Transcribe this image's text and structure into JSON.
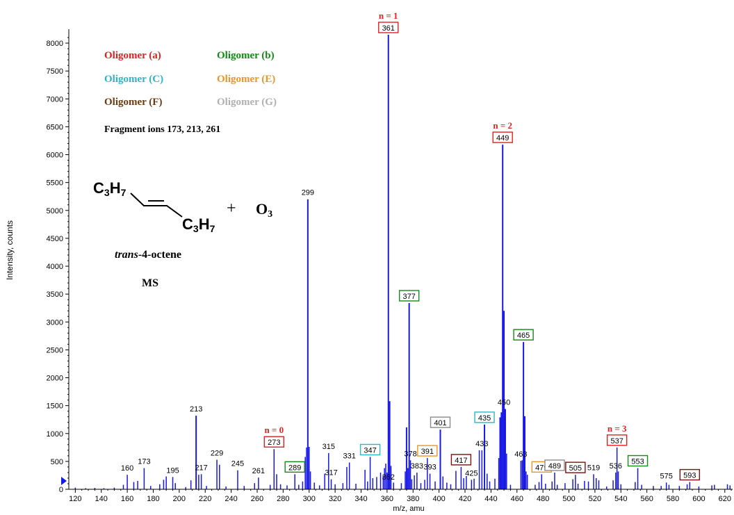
{
  "chart_data": {
    "type": "bar",
    "xlabel": "m/z, amu",
    "ylabel": "Intensity, counts",
    "xlim": [
      115,
      626
    ],
    "ylim": [
      0,
      8200
    ],
    "xticks": [
      120,
      140,
      160,
      180,
      200,
      220,
      240,
      260,
      280,
      300,
      320,
      340,
      360,
      380,
      400,
      420,
      440,
      460,
      480,
      500,
      520,
      540,
      560,
      580,
      600,
      620
    ],
    "yticks": [
      0,
      500,
      1000,
      1500,
      2000,
      2500,
      3000,
      3500,
      4000,
      4500,
      5000,
      5500,
      6000,
      6500,
      7000,
      7500,
      8000
    ],
    "grid": false,
    "peaks": [
      [
        120,
        30
      ],
      [
        128,
        20
      ],
      [
        135,
        25
      ],
      [
        142,
        20
      ],
      [
        150,
        30
      ],
      [
        157,
        80
      ],
      [
        160,
        260
      ],
      [
        165,
        130
      ],
      [
        168,
        150
      ],
      [
        173,
        380
      ],
      [
        178,
        60
      ],
      [
        185,
        90
      ],
      [
        188,
        170
      ],
      [
        190,
        230
      ],
      [
        195,
        220
      ],
      [
        197,
        110
      ],
      [
        205,
        40
      ],
      [
        209,
        160
      ],
      [
        213,
        1320
      ],
      [
        215,
        260
      ],
      [
        217,
        270
      ],
      [
        221,
        60
      ],
      [
        229,
        530
      ],
      [
        231,
        440
      ],
      [
        236,
        50
      ],
      [
        245,
        340
      ],
      [
        250,
        60
      ],
      [
        258,
        110
      ],
      [
        261,
        210
      ],
      [
        270,
        80
      ],
      [
        273,
        720
      ],
      [
        275,
        270
      ],
      [
        278,
        90
      ],
      [
        283,
        70
      ],
      [
        289,
        270
      ],
      [
        292,
        80
      ],
      [
        295,
        140
      ],
      [
        297,
        580
      ],
      [
        298,
        750
      ],
      [
        299,
        5200
      ],
      [
        300,
        760
      ],
      [
        301,
        320
      ],
      [
        304,
        120
      ],
      [
        308,
        70
      ],
      [
        312,
        280
      ],
      [
        315,
        650
      ],
      [
        317,
        180
      ],
      [
        320,
        90
      ],
      [
        326,
        110
      ],
      [
        329,
        400
      ],
      [
        331,
        480
      ],
      [
        336,
        100
      ],
      [
        343,
        350
      ],
      [
        345,
        140
      ],
      [
        347,
        580
      ],
      [
        349,
        200
      ],
      [
        352,
        220
      ],
      [
        355,
        300
      ],
      [
        357,
        240
      ],
      [
        358,
        380
      ],
      [
        359,
        460
      ],
      [
        360,
        300
      ],
      [
        361,
        8150
      ],
      [
        362,
        1580
      ],
      [
        363,
        420
      ],
      [
        365,
        120
      ],
      [
        371,
        110
      ],
      [
        374,
        320
      ],
      [
        375,
        1110
      ],
      [
        376,
        380
      ],
      [
        377,
        3340
      ],
      [
        378,
        520
      ],
      [
        379,
        180
      ],
      [
        381,
        250
      ],
      [
        383,
        300
      ],
      [
        386,
        110
      ],
      [
        389,
        170
      ],
      [
        391,
        560
      ],
      [
        393,
        280
      ],
      [
        397,
        140
      ],
      [
        401,
        1070
      ],
      [
        403,
        230
      ],
      [
        406,
        120
      ],
      [
        409,
        90
      ],
      [
        413,
        330
      ],
      [
        417,
        400
      ],
      [
        419,
        200
      ],
      [
        421,
        240
      ],
      [
        425,
        170
      ],
      [
        427,
        190
      ],
      [
        431,
        700
      ],
      [
        433,
        700
      ],
      [
        435,
        1160
      ],
      [
        437,
        280
      ],
      [
        439,
        140
      ],
      [
        443,
        190
      ],
      [
        446,
        560
      ],
      [
        447,
        1290
      ],
      [
        448,
        1380
      ],
      [
        449,
        6180
      ],
      [
        450,
        3200
      ],
      [
        451,
        1440
      ],
      [
        452,
        640
      ],
      [
        455,
        80
      ],
      [
        463,
        510
      ],
      [
        464,
        520
      ],
      [
        465,
        2640
      ],
      [
        466,
        1310
      ],
      [
        467,
        320
      ],
      [
        468,
        260
      ],
      [
        474,
        80
      ],
      [
        477,
        130
      ],
      [
        479,
        270
      ],
      [
        482,
        100
      ],
      [
        487,
        140
      ],
      [
        489,
        300
      ],
      [
        491,
        80
      ],
      [
        497,
        110
      ],
      [
        503,
        180
      ],
      [
        505,
        260
      ],
      [
        507,
        100
      ],
      [
        512,
        150
      ],
      [
        515,
        140
      ],
      [
        519,
        270
      ],
      [
        521,
        200
      ],
      [
        523,
        160
      ],
      [
        529,
        50
      ],
      [
        534,
        160
      ],
      [
        536,
        300
      ],
      [
        537,
        750
      ],
      [
        538,
        320
      ],
      [
        540,
        90
      ],
      [
        551,
        130
      ],
      [
        553,
        380
      ],
      [
        556,
        80
      ],
      [
        565,
        60
      ],
      [
        571,
        60
      ],
      [
        575,
        120
      ],
      [
        577,
        80
      ],
      [
        585,
        60
      ],
      [
        591,
        90
      ],
      [
        593,
        130
      ],
      [
        600,
        50
      ],
      [
        610,
        70
      ],
      [
        612,
        80
      ],
      [
        622,
        90
      ],
      [
        624,
        70
      ]
    ],
    "labels": [
      {
        "text": "160",
        "x": 160,
        "y": 260
      },
      {
        "text": "173",
        "x": 173,
        "y": 380
      },
      {
        "text": "195",
        "x": 195,
        "y": 220
      },
      {
        "text": "213",
        "x": 213,
        "y": 1320
      },
      {
        "text": "217",
        "x": 217,
        "y": 270
      },
      {
        "text": "229",
        "x": 229,
        "y": 530
      },
      {
        "text": "245",
        "x": 245,
        "y": 340
      },
      {
        "text": "261",
        "x": 261,
        "y": 210
      },
      {
        "text": "273",
        "x": 273,
        "y": 720,
        "box": "#e02020"
      },
      {
        "text": "289",
        "x": 289,
        "y": 270,
        "box": "#138a13"
      },
      {
        "text": "299",
        "x": 299,
        "y": 5200
      },
      {
        "text": "315",
        "x": 315,
        "y": 650
      },
      {
        "text": "317",
        "x": 317,
        "y": 180
      },
      {
        "text": "331",
        "x": 331,
        "y": 480
      },
      {
        "text": "347",
        "x": 347,
        "y": 580,
        "box": "#2cb5c6"
      },
      {
        "text": "362",
        "x": 361,
        "y": 100
      },
      {
        "text": "361",
        "x": 361,
        "y": 8150,
        "box": "#e02020"
      },
      {
        "text": "377",
        "x": 377,
        "y": 3340,
        "box": "#138a13"
      },
      {
        "text": "378",
        "x": 378,
        "y": 520
      },
      {
        "text": "383",
        "x": 383,
        "y": 300
      },
      {
        "text": "391",
        "x": 391,
        "y": 560,
        "box": "#e8962a"
      },
      {
        "text": "393",
        "x": 393,
        "y": 280
      },
      {
        "text": "401",
        "x": 401,
        "y": 1070,
        "box": "#8c8c8c"
      },
      {
        "text": "417",
        "x": 417,
        "y": 400,
        "box": "#7a1010"
      },
      {
        "text": "425",
        "x": 425,
        "y": 170
      },
      {
        "text": "433",
        "x": 433,
        "y": 700
      },
      {
        "text": "435",
        "x": 435,
        "y": 1160,
        "box": "#2cb5c6"
      },
      {
        "text": "449",
        "x": 449,
        "y": 6180,
        "box": "#e02020"
      },
      {
        "text": "450",
        "x": 450,
        "y": 1440
      },
      {
        "text": "463",
        "x": 463,
        "y": 510
      },
      {
        "text": "465",
        "x": 465,
        "y": 2640,
        "box": "#138a13"
      },
      {
        "text": "479",
        "x": 479,
        "y": 270,
        "box": "#e8962a"
      },
      {
        "text": "489",
        "x": 489,
        "y": 300,
        "box": "#8c8c8c"
      },
      {
        "text": "505",
        "x": 505,
        "y": 260,
        "box": "#7a1010"
      },
      {
        "text": "519",
        "x": 519,
        "y": 270
      },
      {
        "text": "536",
        "x": 536,
        "y": 300
      },
      {
        "text": "537",
        "x": 537,
        "y": 750,
        "box": "#e02020"
      },
      {
        "text": "553",
        "x": 553,
        "y": 380,
        "box": "#138a13"
      },
      {
        "text": "575",
        "x": 575,
        "y": 120
      },
      {
        "text": "593",
        "x": 593,
        "y": 130,
        "box": "#7a1010"
      }
    ],
    "n_labels": [
      {
        "text": "n = 0",
        "x": 273
      },
      {
        "text": "n = 1",
        "x": 361
      },
      {
        "text": "n = 2",
        "x": 449
      },
      {
        "text": "n = 3",
        "x": 537
      }
    ],
    "legend": [
      {
        "label": "Oligomer (a)",
        "color": "#e02020"
      },
      {
        "label": "Oligomer (b)",
        "color": "#138a13"
      },
      {
        "label": "Oligomer (C)",
        "color": "#2cb5c6"
      },
      {
        "label": "Oligomer (E)",
        "color": "#e8962a"
      },
      {
        "label": "Oligomer (F)",
        "color": "#6b3a0e"
      },
      {
        "label": "Oligomer (G)",
        "color": "#b0b0b0"
      }
    ],
    "fragment_text": "Fragment  ions 173, 213, 261",
    "colors": {
      "bars": "#1717e6",
      "axis": "#000000",
      "n_label": "#e02020"
    }
  },
  "molecule": {
    "c3": "C",
    "c3_sub": "3",
    "h7": "H",
    "h7_sub": "7",
    "plus": "+",
    "o3": "O",
    "o3_sub": "3",
    "name_italic": "trans",
    "name_rest": "-4-octene",
    "ms": "MS"
  }
}
